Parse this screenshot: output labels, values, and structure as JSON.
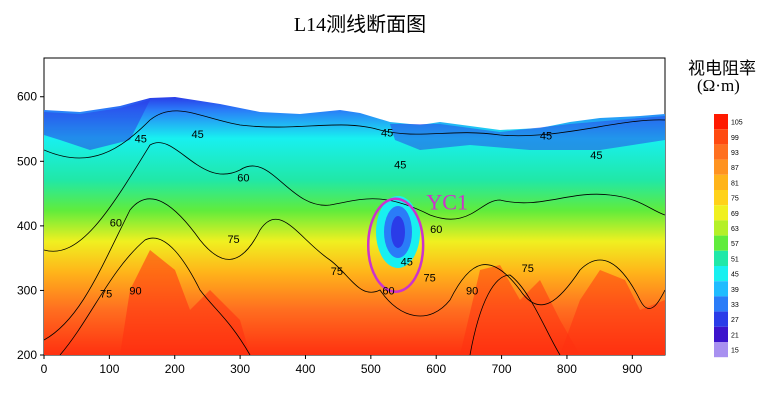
{
  "title": "L14测线断面图",
  "legend": {
    "title_line1": "视电阻率",
    "title_line2": "(Ω·m)",
    "levels": [
      105,
      99,
      93,
      87,
      81,
      75,
      69,
      63,
      57,
      51,
      45,
      39,
      33,
      27,
      21,
      15
    ],
    "colors": [
      "#ff1a00",
      "#ff4a10",
      "#ff7020",
      "#ff9320",
      "#ffb41a",
      "#ffd21a",
      "#f0f020",
      "#b4f028",
      "#60ec3c",
      "#20e8a8",
      "#18f0f0",
      "#20bcff",
      "#2a7cf8",
      "#2a3ce8",
      "#3c14cc",
      "#a890f0"
    ]
  },
  "annotation": {
    "label": "YC1",
    "color": "#cc33cc"
  },
  "chart_data": {
    "type": "heatmap",
    "title": "L14测线断面图",
    "xlabel": "",
    "ylabel": "",
    "xlim": [
      0,
      950
    ],
    "ylim": [
      200,
      660
    ],
    "x_ticks": [
      0,
      100,
      200,
      300,
      400,
      500,
      600,
      700,
      800,
      900
    ],
    "y_ticks": [
      200,
      300,
      400,
      500,
      600
    ],
    "colorbar_title": "视电阻率 (Ω·m)",
    "colorbar_levels": [
      105,
      99,
      93,
      87,
      81,
      75,
      69,
      63,
      57,
      51,
      45,
      39,
      33,
      27,
      21,
      15
    ],
    "contour_labels": [
      {
        "x": 148,
        "y": 535,
        "value": "45"
      },
      {
        "x": 235,
        "y": 542,
        "value": "45"
      },
      {
        "x": 525,
        "y": 545,
        "value": "45"
      },
      {
        "x": 768,
        "y": 540,
        "value": "45"
      },
      {
        "x": 845,
        "y": 510,
        "value": "45"
      },
      {
        "x": 545,
        "y": 495,
        "value": "45"
      },
      {
        "x": 305,
        "y": 475,
        "value": "60"
      },
      {
        "x": 110,
        "y": 405,
        "value": "60"
      },
      {
        "x": 600,
        "y": 395,
        "value": "60"
      },
      {
        "x": 290,
        "y": 380,
        "value": "75"
      },
      {
        "x": 448,
        "y": 330,
        "value": "75"
      },
      {
        "x": 590,
        "y": 320,
        "value": "75"
      },
      {
        "x": 740,
        "y": 335,
        "value": "75"
      },
      {
        "x": 95,
        "y": 295,
        "value": "75"
      },
      {
        "x": 140,
        "y": 300,
        "value": "90"
      },
      {
        "x": 655,
        "y": 300,
        "value": "90"
      },
      {
        "x": 527,
        "y": 300,
        "value": "60"
      },
      {
        "x": 555,
        "y": 345,
        "value": "45"
      }
    ],
    "annotations": [
      {
        "label": "YC1",
        "x": 585,
        "y": 425
      },
      {
        "shape": "ellipse",
        "cx": 538,
        "cy": 370,
        "rx": 42,
        "ry": 72
      }
    ]
  }
}
